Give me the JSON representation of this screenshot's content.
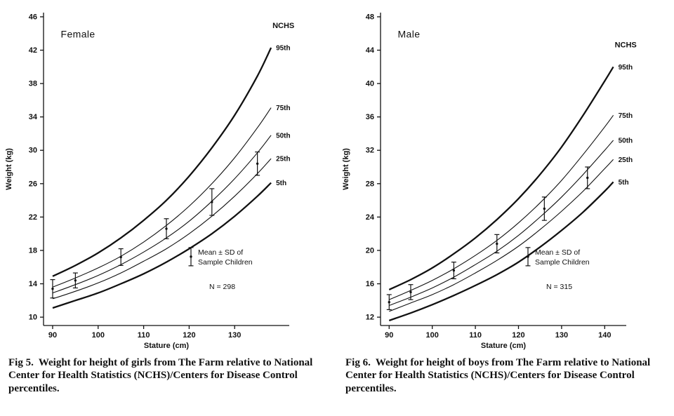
{
  "page": {
    "background": "#ffffff",
    "ink_color": "#111111"
  },
  "chart_data": [
    {
      "type": "line",
      "title": "Female",
      "nchs_label": "NCHS",
      "xlabel": "Stature (cm)",
      "ylabel": "Weight (kg)",
      "xlim": [
        88,
        142
      ],
      "ylim": [
        9,
        46.5
      ],
      "xticks": [
        90,
        100,
        110,
        120,
        130
      ],
      "yticks": [
        10,
        14,
        18,
        22,
        26,
        30,
        34,
        38,
        42,
        46
      ],
      "grid": false,
      "x": [
        90,
        95,
        100,
        105,
        110,
        115,
        120,
        125,
        130,
        135,
        138
      ],
      "series": [
        {
          "name": "95th",
          "bold": true,
          "values": [
            14.9,
            16.2,
            17.7,
            19.5,
            21.6,
            24.0,
            26.9,
            30.3,
            34.2,
            38.9,
            42.3
          ]
        },
        {
          "name": "75th",
          "bold": false,
          "values": [
            13.6,
            14.7,
            15.9,
            17.3,
            19.0,
            21.0,
            23.3,
            26.0,
            29.1,
            32.7,
            35.1
          ]
        },
        {
          "name": "50th",
          "bold": false,
          "values": [
            12.9,
            13.9,
            15.0,
            16.3,
            17.8,
            19.5,
            21.5,
            23.9,
            26.6,
            29.7,
            31.8
          ]
        },
        {
          "name": "25th",
          "bold": false,
          "values": [
            12.2,
            13.1,
            14.1,
            15.3,
            16.7,
            18.2,
            20.0,
            22.1,
            24.5,
            27.2,
            29.0
          ]
        },
        {
          "name": "5th",
          "bold": true,
          "values": [
            11.1,
            12.0,
            12.9,
            14.0,
            15.2,
            16.6,
            18.2,
            20.0,
            22.1,
            24.5,
            26.1
          ]
        }
      ],
      "error_bars": [
        {
          "x": 90,
          "mean": 13.4,
          "sd": 1.1
        },
        {
          "x": 95,
          "mean": 14.4,
          "sd": 0.9
        },
        {
          "x": 105,
          "mean": 17.2,
          "sd": 1.0
        },
        {
          "x": 115,
          "mean": 20.6,
          "sd": 1.2
        },
        {
          "x": 125,
          "mean": 23.8,
          "sd": 1.6
        },
        {
          "x": 135,
          "mean": 28.4,
          "sd": 1.4
        }
      ],
      "legend": {
        "line1": "Mean ± SD of",
        "line2": "Sample Children",
        "n_label": "N = 298",
        "position": "lower-right",
        "fx": 0.6,
        "fy": 0.78
      },
      "caption_fig": "Fig 5.",
      "caption_text": "Weight for height of girls from The Farm relative to National Center for Health Statistics (NCHS)/Centers for Disease Control percentiles."
    },
    {
      "type": "line",
      "title": "Male",
      "nchs_label": "NCHS",
      "xlabel": "Stature (cm)",
      "ylabel": "Weight (kg)",
      "xlim": [
        88,
        145
      ],
      "ylim": [
        11,
        48.5
      ],
      "xticks": [
        90,
        100,
        110,
        120,
        130,
        140
      ],
      "yticks": [
        12,
        16,
        20,
        24,
        28,
        32,
        36,
        40,
        44,
        48
      ],
      "grid": false,
      "x": [
        90,
        95,
        100,
        105,
        110,
        115,
        120,
        125,
        130,
        135,
        140,
        142
      ],
      "series": [
        {
          "name": "95th",
          "bold": true,
          "values": [
            15.3,
            16.5,
            17.9,
            19.6,
            21.5,
            23.7,
            26.2,
            29.1,
            32.4,
            36.2,
            40.3,
            42.0
          ]
        },
        {
          "name": "75th",
          "bold": false,
          "values": [
            14.1,
            15.2,
            16.4,
            17.8,
            19.4,
            21.2,
            23.3,
            25.7,
            28.4,
            31.5,
            34.8,
            36.2
          ]
        },
        {
          "name": "50th",
          "bold": false,
          "values": [
            13.4,
            14.4,
            15.5,
            16.8,
            18.3,
            19.9,
            21.8,
            24.0,
            26.4,
            29.1,
            32.0,
            33.2
          ]
        },
        {
          "name": "25th",
          "bold": false,
          "values": [
            12.7,
            13.7,
            14.7,
            15.9,
            17.3,
            18.8,
            20.5,
            22.5,
            24.7,
            27.1,
            29.8,
            30.9
          ]
        },
        {
          "name": "5th",
          "bold": true,
          "values": [
            11.6,
            12.5,
            13.5,
            14.6,
            15.8,
            17.1,
            18.6,
            20.4,
            22.4,
            24.6,
            27.1,
            28.2
          ]
        }
      ],
      "error_bars": [
        {
          "x": 90,
          "mean": 13.8,
          "sd": 0.9
        },
        {
          "x": 95,
          "mean": 15.0,
          "sd": 0.9
        },
        {
          "x": 105,
          "mean": 17.6,
          "sd": 1.0
        },
        {
          "x": 115,
          "mean": 20.8,
          "sd": 1.1
        },
        {
          "x": 126,
          "mean": 25.0,
          "sd": 1.4
        },
        {
          "x": 136,
          "mean": 28.7,
          "sd": 1.3
        }
      ],
      "legend": {
        "line1": "Mean ± SD of",
        "line2": "Sample Children",
        "n_label": "N = 315",
        "position": "lower-right",
        "fx": 0.6,
        "fy": 0.78
      },
      "caption_fig": "Fig 6.",
      "caption_text": "Weight for height of boys from The Farm relative to National Center for Health Statistics (NCHS)/Centers for Disease Control percentiles."
    }
  ]
}
